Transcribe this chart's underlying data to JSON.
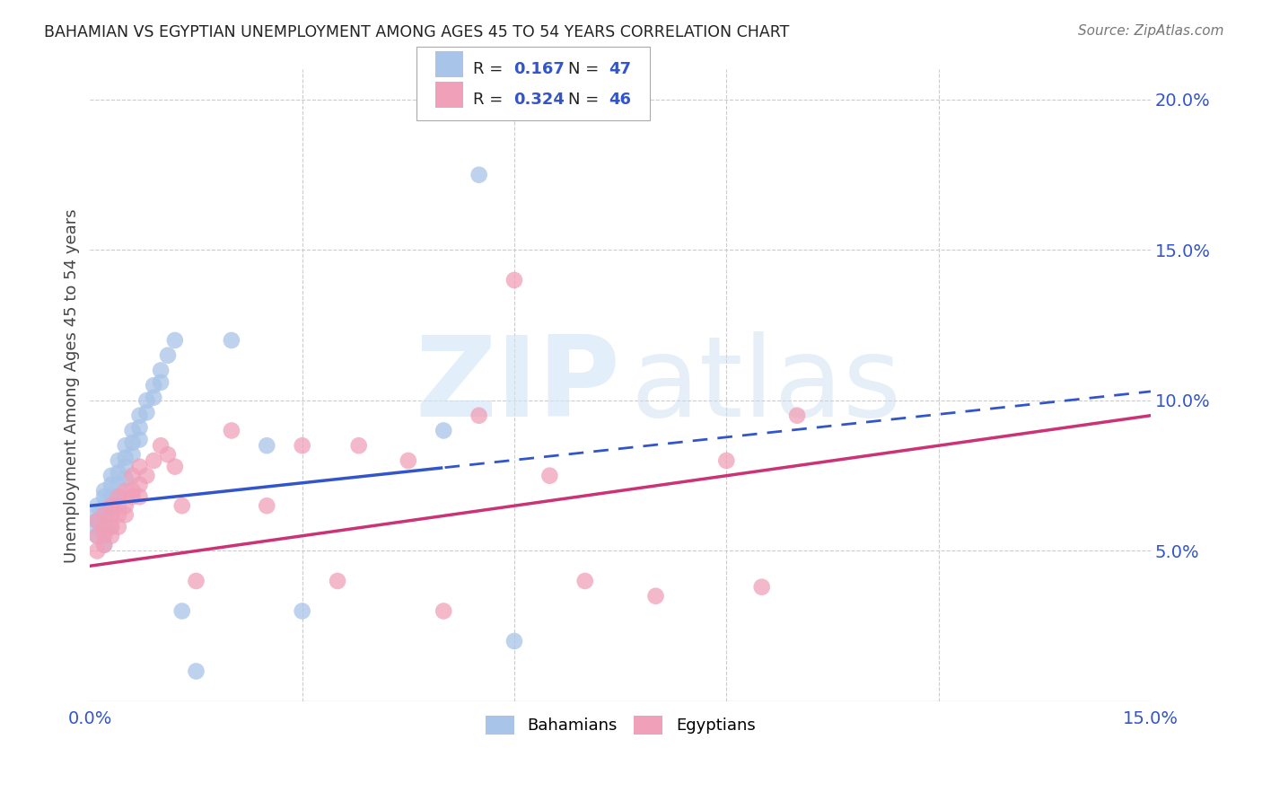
{
  "title": "BAHAMIAN VS EGYPTIAN UNEMPLOYMENT AMONG AGES 45 TO 54 YEARS CORRELATION CHART",
  "source": "Source: ZipAtlas.com",
  "ylabel": "Unemployment Among Ages 45 to 54 years",
  "xlim": [
    0.0,
    0.15
  ],
  "ylim": [
    0.0,
    0.21
  ],
  "bahamian_color": "#a8c4e8",
  "egyptian_color": "#f0a0b8",
  "bahamian_line_color": "#3355cc",
  "egyptian_line_color": "#cc3377",
  "bahamian_R": 0.167,
  "bahamian_N": 47,
  "egyptian_R": 0.324,
  "egyptian_N": 46,
  "tick_color": "#3355cc",
  "background_color": "#ffffff",
  "grid_color": "#cccccc",
  "bahamian_x": [
    0.001,
    0.001,
    0.001,
    0.001,
    0.001,
    0.002,
    0.002,
    0.002,
    0.002,
    0.002,
    0.002,
    0.003,
    0.003,
    0.003,
    0.003,
    0.003,
    0.003,
    0.004,
    0.004,
    0.004,
    0.004,
    0.005,
    0.005,
    0.005,
    0.005,
    0.006,
    0.006,
    0.006,
    0.007,
    0.007,
    0.007,
    0.008,
    0.008,
    0.009,
    0.009,
    0.01,
    0.01,
    0.011,
    0.012,
    0.013,
    0.015,
    0.02,
    0.025,
    0.03,
    0.05,
    0.055,
    0.06
  ],
  "bahamian_y": [
    0.055,
    0.06,
    0.065,
    0.062,
    0.058,
    0.07,
    0.068,
    0.064,
    0.06,
    0.056,
    0.052,
    0.075,
    0.072,
    0.068,
    0.065,
    0.062,
    0.058,
    0.08,
    0.076,
    0.072,
    0.068,
    0.085,
    0.081,
    0.078,
    0.074,
    0.09,
    0.086,
    0.082,
    0.095,
    0.091,
    0.087,
    0.1,
    0.096,
    0.105,
    0.101,
    0.11,
    0.106,
    0.115,
    0.12,
    0.03,
    0.01,
    0.12,
    0.085,
    0.03,
    0.09,
    0.175,
    0.02
  ],
  "egyptian_x": [
    0.001,
    0.001,
    0.001,
    0.002,
    0.002,
    0.002,
    0.002,
    0.003,
    0.003,
    0.003,
    0.003,
    0.004,
    0.004,
    0.004,
    0.004,
    0.005,
    0.005,
    0.005,
    0.006,
    0.006,
    0.006,
    0.007,
    0.007,
    0.007,
    0.008,
    0.009,
    0.01,
    0.011,
    0.012,
    0.013,
    0.015,
    0.02,
    0.025,
    0.03,
    0.035,
    0.038,
    0.045,
    0.05,
    0.055,
    0.06,
    0.065,
    0.07,
    0.08,
    0.09,
    0.095,
    0.1
  ],
  "egyptian_y": [
    0.05,
    0.055,
    0.06,
    0.055,
    0.052,
    0.058,
    0.062,
    0.058,
    0.055,
    0.062,
    0.065,
    0.062,
    0.058,
    0.065,
    0.068,
    0.07,
    0.065,
    0.062,
    0.075,
    0.07,
    0.068,
    0.078,
    0.072,
    0.068,
    0.075,
    0.08,
    0.085,
    0.082,
    0.078,
    0.065,
    0.04,
    0.09,
    0.065,
    0.085,
    0.04,
    0.085,
    0.08,
    0.03,
    0.095,
    0.14,
    0.075,
    0.04,
    0.035,
    0.08,
    0.038,
    0.095
  ]
}
